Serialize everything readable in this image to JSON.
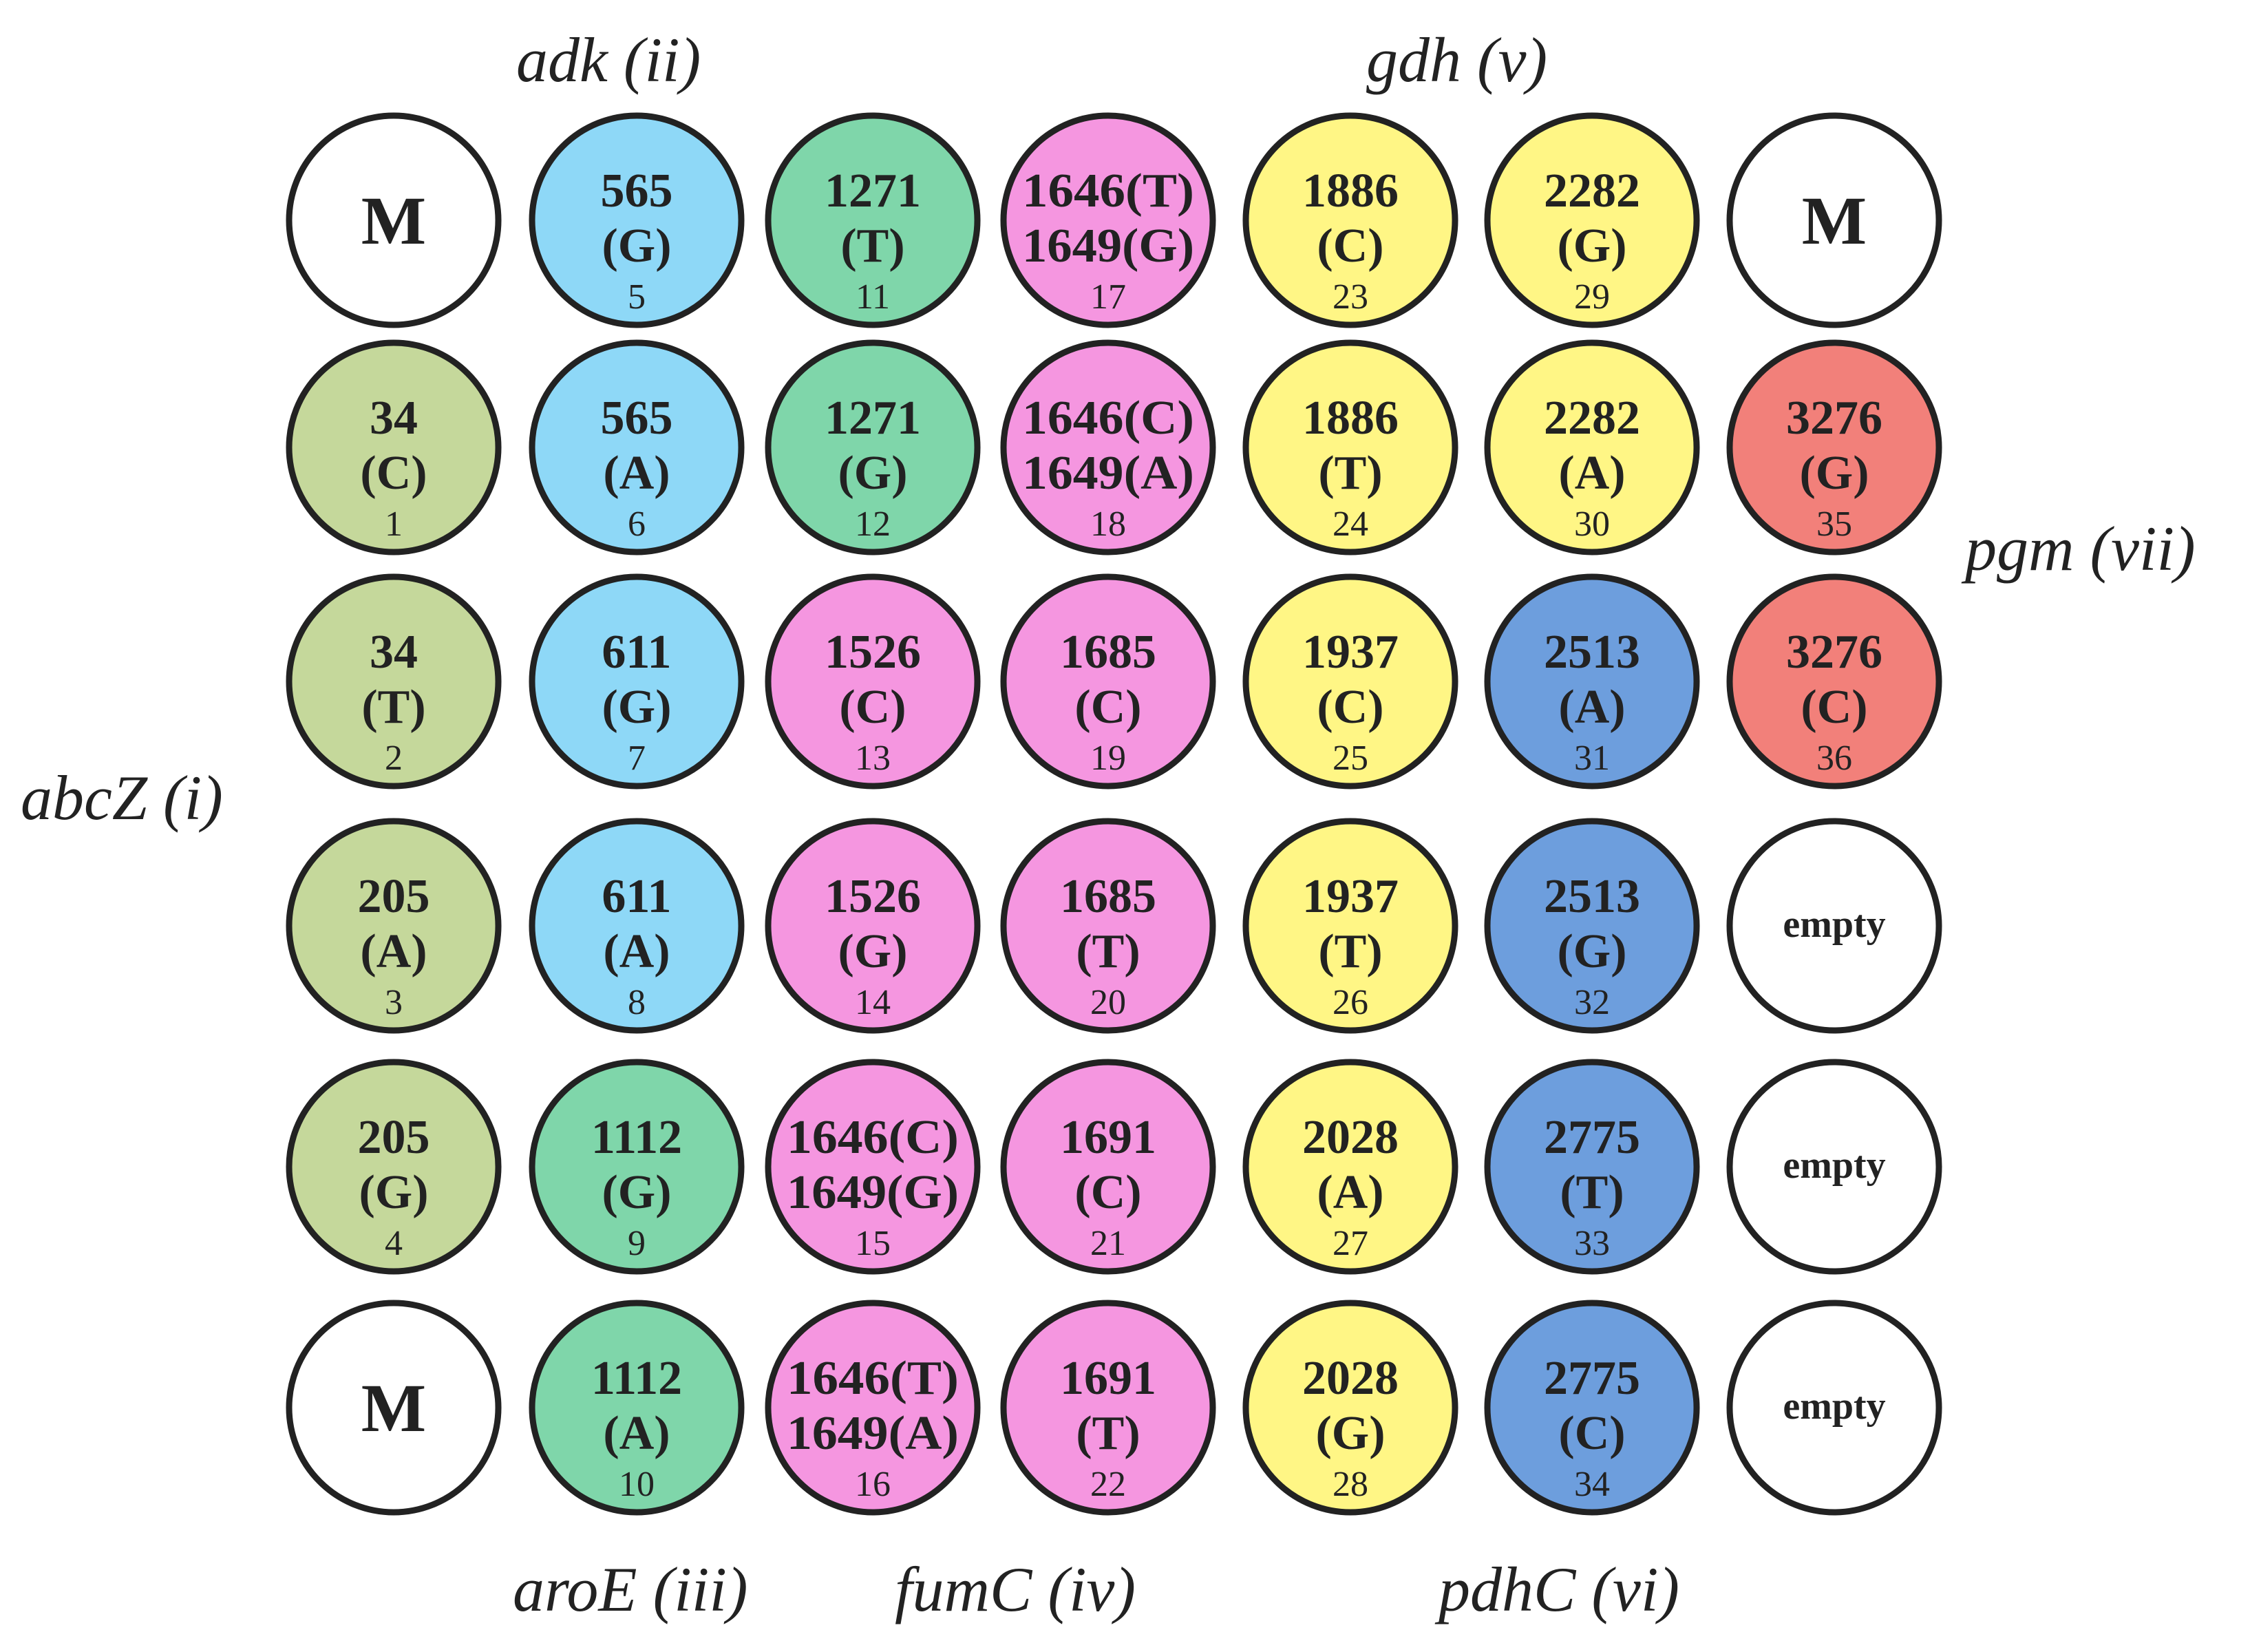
{
  "colors": {
    "abcZ": "#c5d89b",
    "adk": "#8ed8f7",
    "aroE": "#7fd6aa",
    "fumC": "#f596e0",
    "gdh": "#fff685",
    "pdhC": "#6d9edd",
    "pgm": "#f2807a",
    "marker": "#ffffff",
    "empty": "#ffffff",
    "outline": "#222222"
  },
  "gene_labels": [
    {
      "id": "abcZ",
      "text": "abcZ (i)"
    },
    {
      "id": "adk",
      "text": "adk (ii)"
    },
    {
      "id": "aroE",
      "text": "aroE (iii)"
    },
    {
      "id": "fumC",
      "text": "fumC (iv)"
    },
    {
      "id": "gdh",
      "text": "gdh (v)"
    },
    {
      "id": "pdhC",
      "text": "pdhC (vi)"
    },
    {
      "id": "pgm",
      "text": "pgm (vii)"
    }
  ],
  "plate": [
    [
      {
        "kind": "marker",
        "label": "M"
      },
      {
        "kind": "snp",
        "gene": "adk",
        "lines": [
          "565",
          "(G)"
        ],
        "num": "5"
      },
      {
        "kind": "snp",
        "gene": "aroE",
        "lines": [
          "1271",
          "(T)"
        ],
        "num": "11"
      },
      {
        "kind": "snp",
        "gene": "fumC",
        "lines": [
          "1646(T)",
          "1649(G)"
        ],
        "num": "17"
      },
      {
        "kind": "snp",
        "gene": "gdh",
        "lines": [
          "1886",
          "(C)"
        ],
        "num": "23"
      },
      {
        "kind": "snp",
        "gene": "gdh",
        "lines": [
          "2282",
          "(G)"
        ],
        "num": "29"
      },
      {
        "kind": "marker",
        "label": "M"
      }
    ],
    [
      {
        "kind": "snp",
        "gene": "abcZ",
        "lines": [
          "34",
          "(C)"
        ],
        "num": "1"
      },
      {
        "kind": "snp",
        "gene": "adk",
        "lines": [
          "565",
          "(A)"
        ],
        "num": "6"
      },
      {
        "kind": "snp",
        "gene": "aroE",
        "lines": [
          "1271",
          "(G)"
        ],
        "num": "12"
      },
      {
        "kind": "snp",
        "gene": "fumC",
        "lines": [
          "1646(C)",
          "1649(A)"
        ],
        "num": "18"
      },
      {
        "kind": "snp",
        "gene": "gdh",
        "lines": [
          "1886",
          "(T)"
        ],
        "num": "24"
      },
      {
        "kind": "snp",
        "gene": "gdh",
        "lines": [
          "2282",
          "(A)"
        ],
        "num": "30"
      },
      {
        "kind": "snp",
        "gene": "pgm",
        "lines": [
          "3276",
          "(G)"
        ],
        "num": "35"
      }
    ],
    [
      {
        "kind": "snp",
        "gene": "abcZ",
        "lines": [
          "34",
          "(T)"
        ],
        "num": "2"
      },
      {
        "kind": "snp",
        "gene": "adk",
        "lines": [
          "611",
          "(G)"
        ],
        "num": "7"
      },
      {
        "kind": "snp",
        "gene": "fumC",
        "lines": [
          "1526",
          "(C)"
        ],
        "num": "13"
      },
      {
        "kind": "snp",
        "gene": "fumC",
        "lines": [
          "1685",
          "(C)"
        ],
        "num": "19"
      },
      {
        "kind": "snp",
        "gene": "gdh",
        "lines": [
          "1937",
          "(C)"
        ],
        "num": "25"
      },
      {
        "kind": "snp",
        "gene": "pdhC",
        "lines": [
          "2513",
          "(A)"
        ],
        "num": "31"
      },
      {
        "kind": "snp",
        "gene": "pgm",
        "lines": [
          "3276",
          "(C)"
        ],
        "num": "36"
      }
    ],
    [
      {
        "kind": "snp",
        "gene": "abcZ",
        "lines": [
          "205",
          "(A)"
        ],
        "num": "3"
      },
      {
        "kind": "snp",
        "gene": "adk",
        "lines": [
          "611",
          "(A)"
        ],
        "num": "8"
      },
      {
        "kind": "snp",
        "gene": "fumC",
        "lines": [
          "1526",
          "(G)"
        ],
        "num": "14"
      },
      {
        "kind": "snp",
        "gene": "fumC",
        "lines": [
          "1685",
          "(T)"
        ],
        "num": "20"
      },
      {
        "kind": "snp",
        "gene": "gdh",
        "lines": [
          "1937",
          "(T)"
        ],
        "num": "26"
      },
      {
        "kind": "snp",
        "gene": "pdhC",
        "lines": [
          "2513",
          "(G)"
        ],
        "num": "32"
      },
      {
        "kind": "empty",
        "label": "empty"
      }
    ],
    [
      {
        "kind": "snp",
        "gene": "abcZ",
        "lines": [
          "205",
          "(G)"
        ],
        "num": "4"
      },
      {
        "kind": "snp",
        "gene": "aroE",
        "lines": [
          "1112",
          "(G)"
        ],
        "num": "9"
      },
      {
        "kind": "snp",
        "gene": "fumC",
        "lines": [
          "1646(C)",
          "1649(G)"
        ],
        "num": "15"
      },
      {
        "kind": "snp",
        "gene": "fumC",
        "lines": [
          "1691",
          "(C)"
        ],
        "num": "21"
      },
      {
        "kind": "snp",
        "gene": "gdh",
        "lines": [
          "2028",
          "(A)"
        ],
        "num": "27"
      },
      {
        "kind": "snp",
        "gene": "pdhC",
        "lines": [
          "2775",
          "(T)"
        ],
        "num": "33"
      },
      {
        "kind": "empty",
        "label": "empty"
      }
    ],
    [
      {
        "kind": "marker",
        "label": "M"
      },
      {
        "kind": "snp",
        "gene": "aroE",
        "lines": [
          "1112",
          "(A)"
        ],
        "num": "10"
      },
      {
        "kind": "snp",
        "gene": "fumC",
        "lines": [
          "1646(T)",
          "1649(A)"
        ],
        "num": "16"
      },
      {
        "kind": "snp",
        "gene": "fumC",
        "lines": [
          "1691",
          "(T)"
        ],
        "num": "22"
      },
      {
        "kind": "snp",
        "gene": "gdh",
        "lines": [
          "2028",
          "(G)"
        ],
        "num": "28"
      },
      {
        "kind": "snp",
        "gene": "pdhC",
        "lines": [
          "2775",
          "(C)"
        ],
        "num": "34"
      },
      {
        "kind": "empty",
        "label": "empty"
      }
    ]
  ]
}
